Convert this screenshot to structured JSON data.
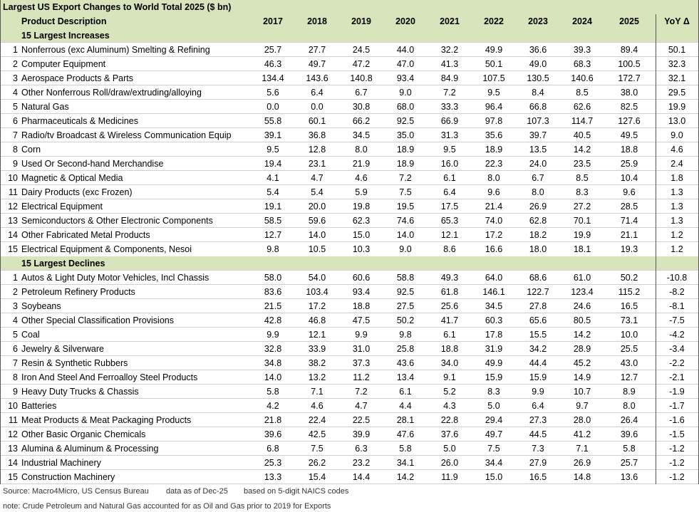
{
  "title": "Largest US Export Changes to World Total 2025 ($ bn)",
  "columns": [
    "Product Description",
    "2017",
    "2018",
    "2019",
    "2020",
    "2021",
    "2022",
    "2023",
    "2024",
    "2025",
    "YoY Δ"
  ],
  "sections": [
    {
      "title": "15 Largest Increases",
      "rows": [
        [
          1,
          "Nonferrous (exc Aluminum) Smelting & Refining",
          "25.7",
          "27.7",
          "24.5",
          "44.0",
          "32.2",
          "49.9",
          "36.6",
          "39.3",
          "89.4",
          "50.1"
        ],
        [
          2,
          "Computer Equipment",
          "46.3",
          "49.7",
          "47.2",
          "47.0",
          "41.3",
          "50.1",
          "49.0",
          "68.3",
          "100.5",
          "32.3"
        ],
        [
          3,
          "Aerospace Products & Parts",
          "134.4",
          "143.6",
          "140.8",
          "93.4",
          "84.9",
          "107.5",
          "130.5",
          "140.6",
          "172.7",
          "32.1"
        ],
        [
          4,
          "Other Nonferrous Roll/draw/extruding/alloying",
          "5.6",
          "6.4",
          "6.7",
          "9.0",
          "7.2",
          "9.5",
          "8.4",
          "8.5",
          "38.0",
          "29.5"
        ],
        [
          5,
          "Natural Gas",
          "0.0",
          "0.0",
          "30.8",
          "68.0",
          "33.3",
          "96.4",
          "66.8",
          "62.6",
          "82.5",
          "19.9"
        ],
        [
          6,
          "Pharmaceuticals & Medicines",
          "55.8",
          "60.1",
          "66.2",
          "92.5",
          "66.9",
          "97.8",
          "107.3",
          "114.7",
          "127.6",
          "13.0"
        ],
        [
          7,
          "Radio/tv Broadcast & Wireless Communication Equip",
          "39.1",
          "36.8",
          "34.5",
          "35.0",
          "31.3",
          "35.6",
          "39.7",
          "40.5",
          "49.5",
          "9.0"
        ],
        [
          8,
          "Corn",
          "9.5",
          "12.8",
          "8.0",
          "18.9",
          "9.5",
          "18.9",
          "13.5",
          "14.2",
          "18.8",
          "4.6"
        ],
        [
          9,
          "Used Or Second-hand Merchandise",
          "19.4",
          "23.1",
          "21.9",
          "18.9",
          "16.0",
          "22.3",
          "24.0",
          "23.5",
          "25.9",
          "2.4"
        ],
        [
          10,
          "Magnetic & Optical Media",
          "4.1",
          "4.7",
          "4.6",
          "7.2",
          "6.1",
          "8.0",
          "6.7",
          "8.5",
          "10.4",
          "1.8"
        ],
        [
          11,
          "Dairy Products (exc Frozen)",
          "5.4",
          "5.4",
          "5.9",
          "7.5",
          "6.4",
          "9.6",
          "8.0",
          "8.3",
          "9.6",
          "1.3"
        ],
        [
          12,
          "Electrical Equipment",
          "19.1",
          "20.0",
          "19.8",
          "19.5",
          "17.5",
          "21.4",
          "26.9",
          "27.2",
          "28.5",
          "1.3"
        ],
        [
          13,
          "Semiconductors & Other Electronic Components",
          "58.5",
          "59.6",
          "62.3",
          "74.6",
          "65.3",
          "74.0",
          "62.8",
          "70.1",
          "71.4",
          "1.3"
        ],
        [
          14,
          "Other Fabricated Metal Products",
          "12.7",
          "14.0",
          "15.0",
          "14.0",
          "12.1",
          "17.2",
          "18.2",
          "19.9",
          "21.1",
          "1.2"
        ],
        [
          15,
          "Electrical Equipment & Components, Nesoi",
          "9.8",
          "10.5",
          "10.3",
          "9.0",
          "8.6",
          "16.6",
          "18.0",
          "18.1",
          "19.3",
          "1.2"
        ]
      ]
    },
    {
      "title": "15 Largest Declines",
      "rows": [
        [
          1,
          "Autos & Light Duty Motor Vehicles, Incl Chassis",
          "58.0",
          "54.0",
          "60.6",
          "58.8",
          "49.3",
          "64.0",
          "68.6",
          "61.0",
          "50.2",
          "-10.8"
        ],
        [
          2,
          "Petroleum Refinery Products",
          "83.6",
          "103.4",
          "93.4",
          "92.5",
          "61.8",
          "146.1",
          "122.7",
          "123.4",
          "115.2",
          "-8.2"
        ],
        [
          3,
          "Soybeans",
          "21.5",
          "17.2",
          "18.8",
          "27.5",
          "25.6",
          "34.5",
          "27.8",
          "24.6",
          "16.5",
          "-8.1"
        ],
        [
          4,
          "Other Special Classification Provisions",
          "42.8",
          "46.8",
          "47.5",
          "50.2",
          "41.7",
          "60.3",
          "65.6",
          "80.5",
          "73.1",
          "-7.5"
        ],
        [
          5,
          "Coal",
          "9.9",
          "12.1",
          "9.9",
          "9.8",
          "6.1",
          "17.8",
          "15.5",
          "14.2",
          "10.0",
          "-4.2"
        ],
        [
          6,
          "Jewelry & Silverware",
          "32.8",
          "33.9",
          "31.0",
          "25.8",
          "18.8",
          "31.9",
          "34.2",
          "28.9",
          "25.5",
          "-3.4"
        ],
        [
          7,
          "Resin & Synthetic Rubbers",
          "34.8",
          "38.2",
          "37.3",
          "43.6",
          "34.0",
          "49.9",
          "44.4",
          "45.2",
          "43.0",
          "-2.2"
        ],
        [
          8,
          "Iron And Steel And Ferroalloy Steel Products",
          "14.0",
          "13.2",
          "11.2",
          "13.4",
          "9.1",
          "15.9",
          "15.9",
          "14.9",
          "12.7",
          "-2.1"
        ],
        [
          9,
          "Heavy Duty Trucks & Chassis",
          "5.8",
          "7.1",
          "7.2",
          "6.1",
          "5.2",
          "8.3",
          "9.9",
          "10.7",
          "8.9",
          "-1.9"
        ],
        [
          10,
          "Batteries",
          "4.2",
          "4.6",
          "4.7",
          "4.4",
          "4.3",
          "5.0",
          "6.4",
          "9.7",
          "8.0",
          "-1.7"
        ],
        [
          11,
          "Meat Products & Meat Packaging Products",
          "21.8",
          "22.4",
          "22.5",
          "28.1",
          "22.8",
          "29.4",
          "27.3",
          "28.0",
          "26.4",
          "-1.6"
        ],
        [
          12,
          "Other Basic Organic Chemicals",
          "39.6",
          "42.5",
          "39.9",
          "47.6",
          "37.6",
          "49.7",
          "44.5",
          "41.2",
          "39.6",
          "-1.5"
        ],
        [
          13,
          "Alumina & Aluminum  & Processing",
          "6.8",
          "7.5",
          "6.3",
          "5.8",
          "5.0",
          "7.5",
          "7.3",
          "7.1",
          "5.8",
          "-1.2"
        ],
        [
          14,
          "Industrial Machinery",
          "25.3",
          "26.2",
          "23.2",
          "34.1",
          "26.0",
          "34.4",
          "27.9",
          "26.9",
          "25.7",
          "-1.2"
        ],
        [
          15,
          "Construction Machinery",
          "13.3",
          "15.4",
          "14.4",
          "14.2",
          "11.9",
          "15.0",
          "16.5",
          "14.8",
          "13.6",
          "-1.2"
        ]
      ]
    }
  ],
  "footer": {
    "source": "Source: Macro4Micro, US Census Bureau",
    "asof": "data as of Dec-25",
    "basis": "based on 5-digit NAICS codes",
    "note": "note: Crude Petroleum and Natural Gas accounted for as Oil and Gas prior to 2019 for Exports"
  }
}
